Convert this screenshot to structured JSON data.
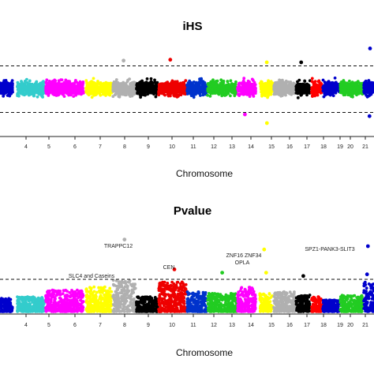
{
  "chart_data": [
    {
      "type": "scatter",
      "title": "iHS",
      "xlabel": "Chromosome",
      "chromosomes": [
        "4",
        "5",
        "6",
        "7",
        "8",
        "9",
        "10",
        "11",
        "12",
        "13",
        "14",
        "15",
        "16",
        "17",
        "18",
        "19",
        "20",
        "21"
      ],
      "tick_labels": [
        "4",
        "5",
        "6",
        "7",
        "8",
        "9",
        "10",
        "11",
        "12",
        "13",
        "14",
        "15",
        "16",
        "17",
        "18",
        "19",
        "20",
        "21"
      ],
      "colors": [
        "#0000cc",
        "#33cccc",
        "#ff00ff",
        "#ffff00",
        "#b0b0b0",
        "#000000",
        "#ee0000",
        "#0033cc",
        "#22cc22",
        "#ff00ff",
        "#ffff00",
        "#b0b0b0",
        "#000000",
        "#ff0000",
        "#0000cc",
        "#22cc22",
        "#0000cc",
        "#00cccc"
      ],
      "threshold_upper": 2.5,
      "threshold_lower": -2.5,
      "ylim": [
        -5,
        5
      ],
      "band": [
        -1.8,
        1.8
      ],
      "outliers": [
        {
          "chrom": "8",
          "y": 3.2
        },
        {
          "chrom": "10",
          "y": 3.3
        },
        {
          "chrom": "13",
          "y": -3.0
        },
        {
          "chrom": "14",
          "y": -4.0
        },
        {
          "chrom": "14",
          "y": 3.0
        },
        {
          "chrom": "16",
          "y": 3.0
        },
        {
          "chrom": "20",
          "y": 4.6
        },
        {
          "chrom": "20",
          "y": -3.2
        }
      ]
    },
    {
      "type": "scatter",
      "title": "Pvalue",
      "xlabel": "Chromosome",
      "chromosomes": [
        "4",
        "5",
        "6",
        "7",
        "8",
        "9",
        "10",
        "11",
        "12",
        "13",
        "14",
        "15",
        "16",
        "17",
        "18",
        "19",
        "20",
        "21"
      ],
      "tick_labels": [
        "4",
        "5",
        "6",
        "7",
        "8",
        "9",
        "10",
        "11",
        "12",
        "13",
        "14",
        "15",
        "16",
        "17",
        "18",
        "19",
        "20",
        "21"
      ],
      "colors": [
        "#0000cc",
        "#33cccc",
        "#ff00ff",
        "#ffff00",
        "#b0b0b0",
        "#000000",
        "#ee0000",
        "#0033cc",
        "#22cc22",
        "#ff00ff",
        "#ffff00",
        "#b0b0b0",
        "#000000",
        "#ff0000",
        "#0000cc",
        "#22cc22",
        "#0000cc",
        "#00cccc"
      ],
      "threshold": 2.0,
      "ylim": [
        0,
        5
      ],
      "base_height": [
        0.8,
        0.9,
        1.3,
        1.5,
        1.9,
        0.9,
        1.8,
        1.2,
        1.1,
        1.5,
        1.1,
        1.2,
        1.0,
        0.9,
        0.7,
        1.0,
        1.8,
        0.9
      ],
      "annotations": [
        {
          "text": "TRAPPC12",
          "chrom": "8",
          "y": 4.0
        },
        {
          "text": "CEN",
          "chrom": "10",
          "y": 2.6
        },
        {
          "text": "ZNF16 ZNF34",
          "chrom": "14",
          "y": 3.3
        },
        {
          "text": "OPLA",
          "chrom": "14",
          "y": 2.9
        },
        {
          "text": "SPZ1-PANK3-SLIT3",
          "chrom": "20",
          "y": 3.7
        },
        {
          "text": "SLC4 and Caseins",
          "chrom": "6",
          "y": 2.1
        }
      ],
      "outliers": [
        {
          "chrom": "8",
          "y": 4.4
        },
        {
          "chrom": "10",
          "y": 2.6
        },
        {
          "chrom": "12",
          "y": 2.4
        },
        {
          "chrom": "14",
          "y": 3.8
        },
        {
          "chrom": "14",
          "y": 2.4
        },
        {
          "chrom": "16",
          "y": 2.2
        },
        {
          "chrom": "20",
          "y": 4.0
        },
        {
          "chrom": "20",
          "y": 2.3
        }
      ]
    }
  ]
}
